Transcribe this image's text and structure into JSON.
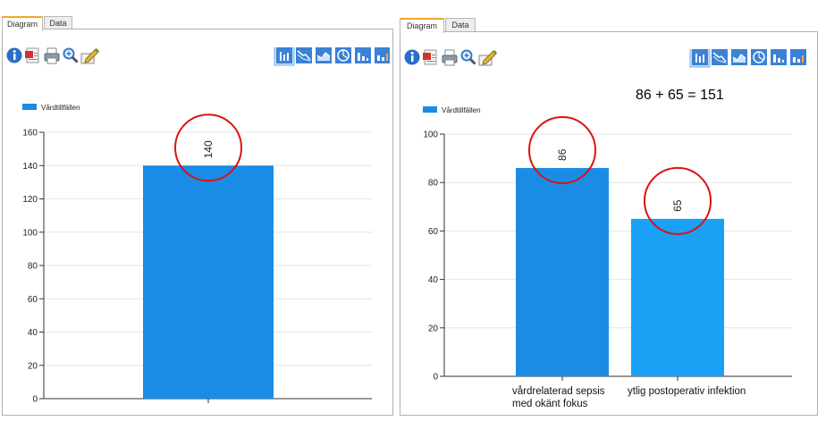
{
  "colors": {
    "bar": "#1a8ce6",
    "bar_left_right_alt": "#1aa0f5",
    "circle": "#dd1111",
    "tab_accent": "#f0a830",
    "toolbar_active_bg": "#bfe0ff"
  },
  "panels": [
    {
      "tabs": [
        "Diagram",
        "Data"
      ],
      "toolbar_left": [
        "info-icon",
        "pdf-export-icon",
        "print-icon",
        "zoom-icon",
        "edit-icon"
      ],
      "toolbar_right": [
        "bar-chart-icon",
        "line-chart-icon",
        "area-chart-icon",
        "pie-chart-icon",
        "column-chart-icon",
        "stacked-chart-icon"
      ],
      "annotation": "",
      "chart_data": {
        "type": "bar",
        "legend": "Vårdtillfällen",
        "legend_position": "top-left",
        "categories": [
          ""
        ],
        "series": [
          {
            "name": "Vårdtillfällen",
            "values": [
              140
            ]
          }
        ],
        "data_labels": [
          "140"
        ],
        "ylim": [
          0,
          160
        ],
        "yticks": [
          "0",
          "20",
          "40",
          "60",
          "80",
          "100",
          "120",
          "140",
          "160"
        ],
        "grid": true,
        "highlight_circles": [
          0
        ]
      }
    },
    {
      "tabs": [
        "Diagram",
        "Data"
      ],
      "toolbar_left": [
        "info-icon",
        "pdf-export-icon",
        "print-icon",
        "zoom-icon",
        "edit-icon"
      ],
      "toolbar_right": [
        "bar-chart-icon",
        "line-chart-icon",
        "area-chart-icon",
        "pie-chart-icon",
        "column-chart-icon",
        "stacked-chart-icon"
      ],
      "annotation": "86 + 65 = 151",
      "chart_data": {
        "type": "bar",
        "legend": "Vårdtillfällen",
        "legend_position": "top-left",
        "categories": [
          "vårdrelaterad sepsis\nmed okänt fokus",
          "ytlig postoperativ infektion"
        ],
        "series": [
          {
            "name": "Vårdtillfällen",
            "values": [
              86,
              65
            ]
          }
        ],
        "data_labels": [
          "86",
          "65"
        ],
        "ylim": [
          0,
          100
        ],
        "yticks": [
          "0",
          "20",
          "40",
          "60",
          "80",
          "100"
        ],
        "grid": true,
        "highlight_circles": [
          0,
          1
        ]
      }
    }
  ]
}
